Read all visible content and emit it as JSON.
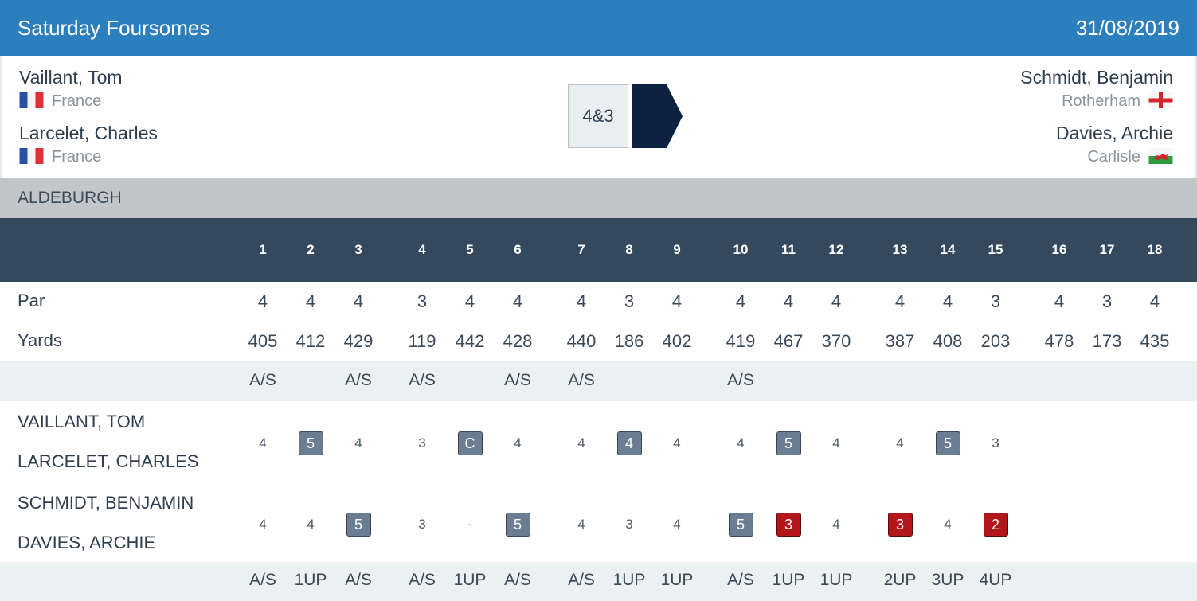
{
  "header": {
    "title": "Saturday Foursomes",
    "date": "31/08/2019"
  },
  "match": {
    "left_team": [
      {
        "name": "Vaillant, Tom",
        "club": "France",
        "flag": "france-flag-icon"
      },
      {
        "name": "Larcelet, Charles",
        "club": "France",
        "flag": "france-flag-icon"
      }
    ],
    "right_team": [
      {
        "name": "Schmidt, Benjamin",
        "club": "Rotherham",
        "flag": "england-flag-icon"
      },
      {
        "name": "Davies, Archie",
        "club": "Carlisle",
        "flag": "wales-flag-icon"
      }
    ],
    "result": "4&3",
    "winner_color": "#0d2240"
  },
  "course": {
    "name": "ALDEBURGH"
  },
  "holes": [
    "1",
    "2",
    "3",
    "4",
    "5",
    "6",
    "7",
    "8",
    "9",
    "10",
    "11",
    "12",
    "13",
    "14",
    "15",
    "16",
    "17",
    "18"
  ],
  "par": {
    "label": "Par",
    "values": [
      "4",
      "4",
      "4",
      "3",
      "4",
      "4",
      "4",
      "3",
      "4",
      "4",
      "4",
      "4",
      "4",
      "4",
      "3",
      "4",
      "3",
      "4"
    ]
  },
  "yards": {
    "label": "Yards",
    "values": [
      "405",
      "412",
      "429",
      "119",
      "442",
      "428",
      "440",
      "186",
      "402",
      "419",
      "467",
      "370",
      "387",
      "408",
      "203",
      "478",
      "173",
      "435"
    ]
  },
  "status_top": [
    "A/S",
    "",
    "A/S",
    "A/S",
    "",
    "A/S",
    "A/S",
    "",
    "",
    "A/S",
    "",
    "",
    "",
    "",
    "",
    "",
    "",
    ""
  ],
  "team1": {
    "player1": "VAILLANT, TOM",
    "player2": "LARCELET, CHARLES",
    "scores": [
      {
        "v": "4",
        "t": "none"
      },
      {
        "v": "5",
        "t": "bogey"
      },
      {
        "v": "4",
        "t": "none"
      },
      {
        "v": "3",
        "t": "none"
      },
      {
        "v": "C",
        "t": "bogey"
      },
      {
        "v": "4",
        "t": "none"
      },
      {
        "v": "4",
        "t": "none"
      },
      {
        "v": "4",
        "t": "bogey"
      },
      {
        "v": "4",
        "t": "none"
      },
      {
        "v": "4",
        "t": "none"
      },
      {
        "v": "5",
        "t": "bogey"
      },
      {
        "v": "4",
        "t": "none"
      },
      {
        "v": "4",
        "t": "none"
      },
      {
        "v": "5",
        "t": "bogey"
      },
      {
        "v": "3",
        "t": "none"
      },
      {
        "v": "",
        "t": "none"
      },
      {
        "v": "",
        "t": "none"
      },
      {
        "v": "",
        "t": "none"
      }
    ]
  },
  "team2": {
    "player1": "SCHMIDT, BENJAMIN",
    "player2": "DAVIES, ARCHIE",
    "scores": [
      {
        "v": "4",
        "t": "none"
      },
      {
        "v": "4",
        "t": "none"
      },
      {
        "v": "5",
        "t": "bogey"
      },
      {
        "v": "3",
        "t": "none"
      },
      {
        "v": "-",
        "t": "none"
      },
      {
        "v": "5",
        "t": "bogey"
      },
      {
        "v": "4",
        "t": "none"
      },
      {
        "v": "3",
        "t": "none"
      },
      {
        "v": "4",
        "t": "none"
      },
      {
        "v": "5",
        "t": "bogey"
      },
      {
        "v": "3",
        "t": "birdie"
      },
      {
        "v": "4",
        "t": "none"
      },
      {
        "v": "3",
        "t": "birdie"
      },
      {
        "v": "4",
        "t": "none"
      },
      {
        "v": "2",
        "t": "birdie"
      },
      {
        "v": "",
        "t": "none"
      },
      {
        "v": "",
        "t": "none"
      },
      {
        "v": "",
        "t": "none"
      }
    ]
  },
  "status_bottom": [
    "A/S",
    "1UP",
    "A/S",
    "A/S",
    "1UP",
    "A/S",
    "A/S",
    "1UP",
    "1UP",
    "A/S",
    "1UP",
    "1UP",
    "2UP",
    "3UP",
    "4UP",
    "",
    "",
    ""
  ],
  "colors": {
    "header": "#2c7fbd",
    "holes_bar": "#34495e",
    "course_bar": "#c3c6c9",
    "bogey_chip": "#6b7d92",
    "birdie_chip": "#b3161a"
  }
}
